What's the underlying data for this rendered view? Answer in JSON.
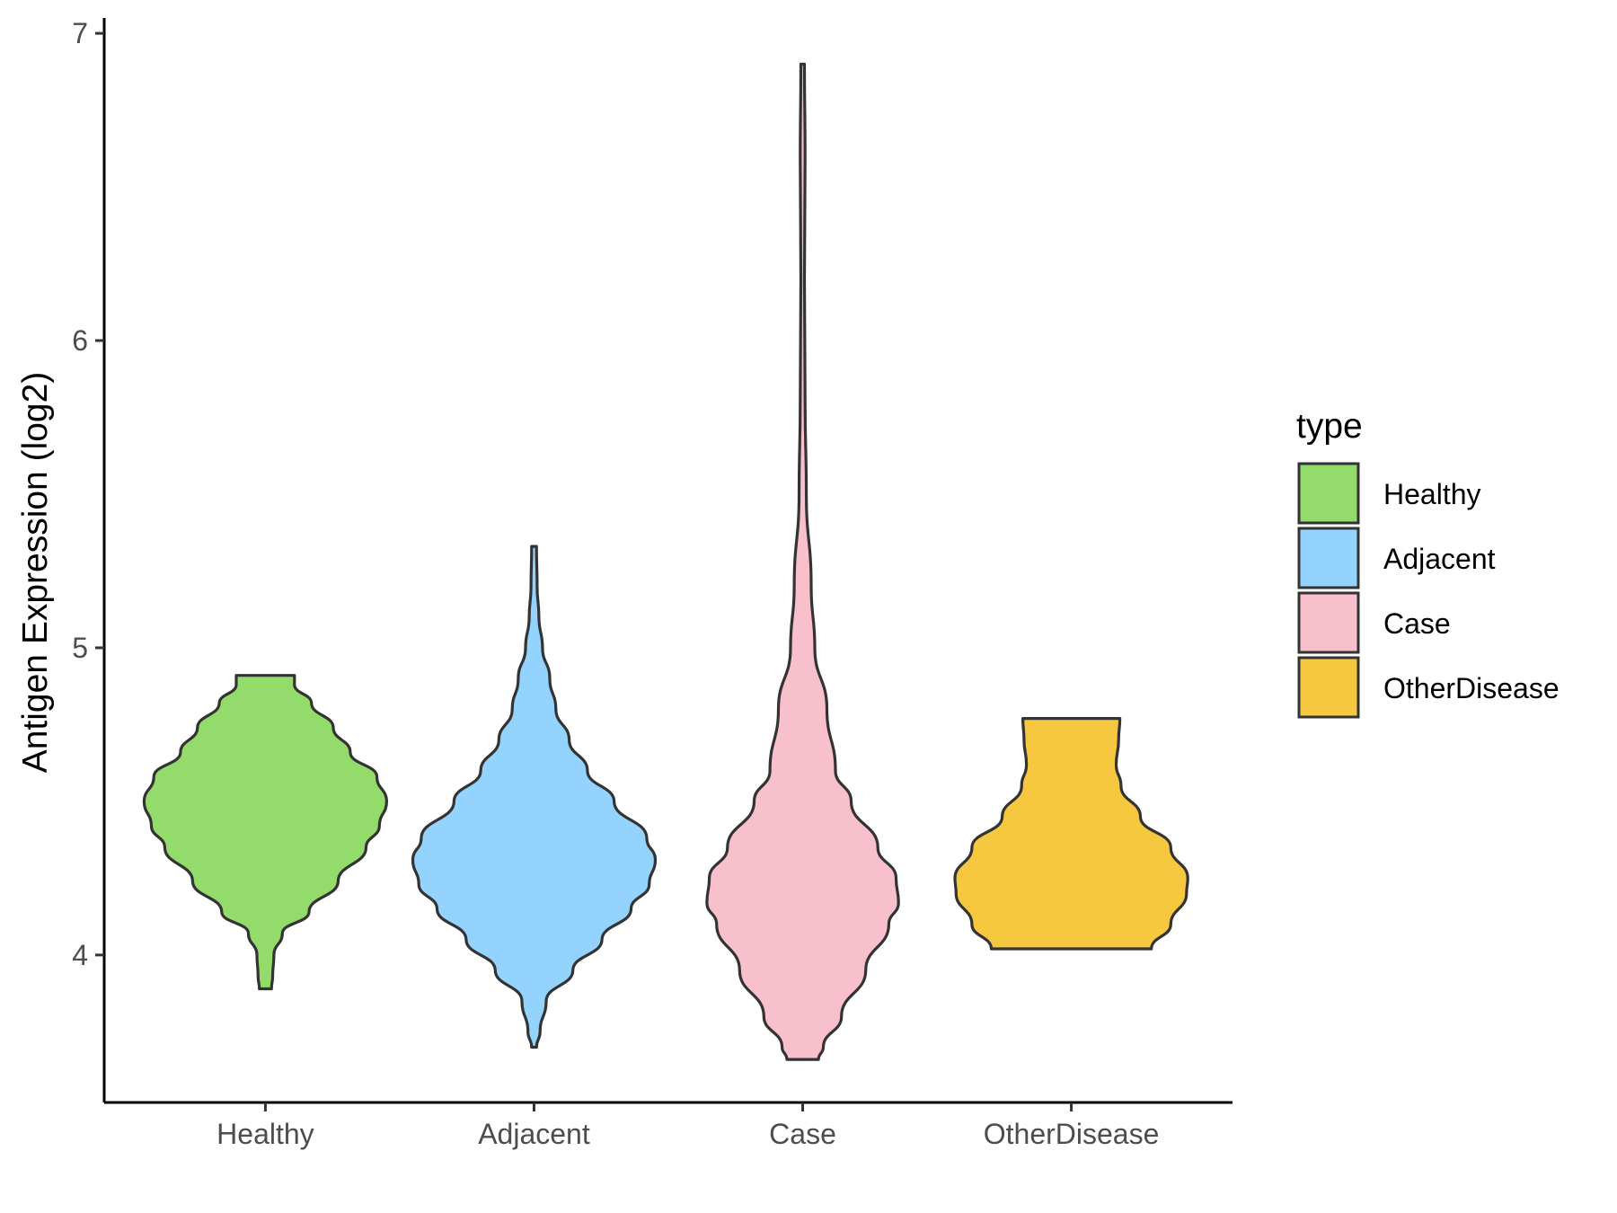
{
  "chart_data": {
    "type": "violin",
    "title": "",
    "xlabel": "",
    "ylabel": "Antigen Expression (log2)",
    "ylim": [
      3.52,
      7.05
    ],
    "yticks": [
      4,
      5,
      6,
      7
    ],
    "grid": false,
    "categories": [
      "Healthy",
      "Adjacent",
      "Case",
      "OtherDisease"
    ],
    "legend": {
      "title": "type",
      "placement": "right",
      "entries": [
        "Healthy",
        "Adjacent",
        "Case",
        "OtherDisease"
      ]
    },
    "colors": {
      "Healthy": "#93DB6A",
      "Adjacent": "#93D3FE",
      "Case": "#F8C0CC",
      "OtherDisease": "#F6C840",
      "outline": "#333333"
    },
    "series": [
      {
        "category": "Healthy",
        "min": 3.89,
        "max": 4.91,
        "density": [
          [
            3.89,
            0.05
          ],
          [
            3.93,
            0.06
          ],
          [
            4.0,
            0.07
          ],
          [
            4.07,
            0.14
          ],
          [
            4.14,
            0.36
          ],
          [
            4.24,
            0.6
          ],
          [
            4.35,
            0.83
          ],
          [
            4.42,
            0.94
          ],
          [
            4.5,
            1.0
          ],
          [
            4.58,
            0.92
          ],
          [
            4.66,
            0.7
          ],
          [
            4.74,
            0.56
          ],
          [
            4.82,
            0.38
          ],
          [
            4.88,
            0.24
          ],
          [
            4.91,
            0.24
          ]
        ]
      },
      {
        "category": "Adjacent",
        "min": 3.7,
        "max": 5.33,
        "density": [
          [
            3.7,
            0.02
          ],
          [
            3.75,
            0.05
          ],
          [
            3.85,
            0.1
          ],
          [
            3.95,
            0.32
          ],
          [
            4.05,
            0.56
          ],
          [
            4.15,
            0.8
          ],
          [
            4.23,
            0.95
          ],
          [
            4.31,
            1.0
          ],
          [
            4.38,
            0.93
          ],
          [
            4.5,
            0.66
          ],
          [
            4.6,
            0.44
          ],
          [
            4.7,
            0.29
          ],
          [
            4.8,
            0.18
          ],
          [
            4.9,
            0.13
          ],
          [
            5.0,
            0.07
          ],
          [
            5.1,
            0.04
          ],
          [
            5.2,
            0.025
          ],
          [
            5.33,
            0.02
          ]
        ]
      },
      {
        "category": "Case",
        "min": 3.66,
        "max": 6.9,
        "density": [
          [
            3.66,
            0.13
          ],
          [
            3.7,
            0.17
          ],
          [
            3.8,
            0.32
          ],
          [
            3.95,
            0.52
          ],
          [
            4.1,
            0.71
          ],
          [
            4.17,
            0.79
          ],
          [
            4.25,
            0.77
          ],
          [
            4.35,
            0.62
          ],
          [
            4.5,
            0.4
          ],
          [
            4.6,
            0.27
          ],
          [
            4.8,
            0.2
          ],
          [
            5.0,
            0.1
          ],
          [
            5.2,
            0.07
          ],
          [
            5.5,
            0.03
          ],
          [
            5.8,
            0.02
          ],
          [
            6.2,
            0.015
          ],
          [
            6.6,
            0.02
          ],
          [
            6.9,
            0.015
          ]
        ]
      },
      {
        "category": "OtherDisease",
        "min": 4.02,
        "max": 4.77,
        "density": [
          [
            4.02,
            0.66
          ],
          [
            4.1,
            0.82
          ],
          [
            4.2,
            0.95
          ],
          [
            4.25,
            0.96
          ],
          [
            4.35,
            0.82
          ],
          [
            4.45,
            0.57
          ],
          [
            4.55,
            0.41
          ],
          [
            4.62,
            0.37
          ],
          [
            4.7,
            0.39
          ],
          [
            4.77,
            0.4
          ]
        ]
      }
    ]
  }
}
